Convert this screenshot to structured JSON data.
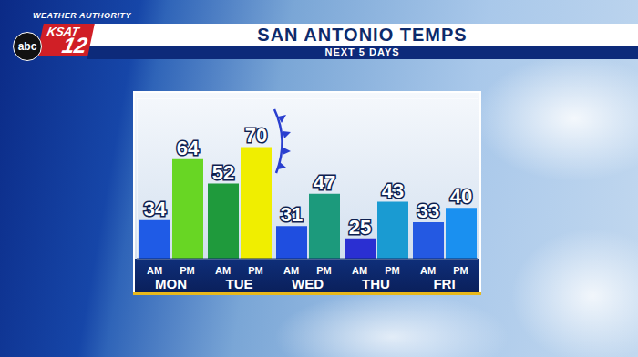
{
  "chart_data": {
    "type": "bar",
    "title": "SAN ANTONIO TEMPS",
    "subtitle": "NEXT 5 DAYS",
    "annotations": [
      "WEATHER AUTHORITY",
      "KSAT",
      "12",
      "abc"
    ],
    "categories": [
      "MON",
      "TUE",
      "WED",
      "THU",
      "FRI"
    ],
    "series": [
      {
        "name": "AM",
        "values": [
          34,
          52,
          31,
          25,
          33
        ],
        "colors": [
          "#1f5be6",
          "#1f9a3c",
          "#1f4ee0",
          "#2a2fd2",
          "#2459e2"
        ]
      },
      {
        "name": "PM",
        "values": [
          64,
          70,
          47,
          43,
          40
        ],
        "colors": [
          "#68d624",
          "#f0ee00",
          "#1c9a7c",
          "#1a9bd2",
          "#1a90f0"
        ]
      }
    ],
    "ylim": [
      15,
      94
    ],
    "data_labels": true,
    "tick_labels": "x",
    "grid": false
  }
}
